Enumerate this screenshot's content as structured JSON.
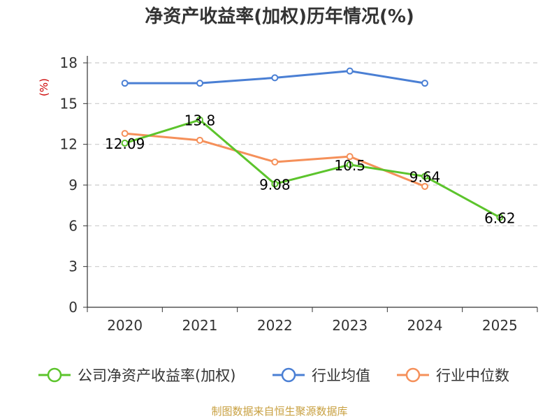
{
  "chart_data": {
    "type": "line",
    "title": "净资产收益率(加权)历年情况(%)",
    "ylabel": "(%)",
    "xlabel": "",
    "categories": [
      "2020",
      "2021",
      "2022",
      "2023",
      "2024",
      "2025"
    ],
    "ylim": [
      0,
      18
    ],
    "yticks": [
      0,
      3,
      6,
      9,
      12,
      15,
      18
    ],
    "grid": true,
    "legend_position": "bottom",
    "series": [
      {
        "name": "公司净资产收益率(加权)",
        "color": "#5cc42c",
        "values": [
          12.09,
          13.8,
          9.08,
          10.5,
          9.64,
          6.62
        ],
        "labels": [
          "12.09",
          "13.8",
          "9.08",
          "10.5",
          "9.64",
          "6.62"
        ]
      },
      {
        "name": "行业均值",
        "color": "#4a7fd4",
        "values": [
          16.5,
          16.5,
          16.9,
          17.4,
          16.5,
          null
        ]
      },
      {
        "name": "行业中位数",
        "color": "#f5905a",
        "values": [
          12.8,
          12.3,
          10.7,
          11.1,
          8.9,
          null
        ]
      }
    ]
  },
  "source_text": "制图数据来自恒生聚源数据库",
  "colors": {
    "unit_label": "#cc0000",
    "source_text": "#c8a040",
    "axis": "#333333",
    "grid": "#cccccc"
  }
}
